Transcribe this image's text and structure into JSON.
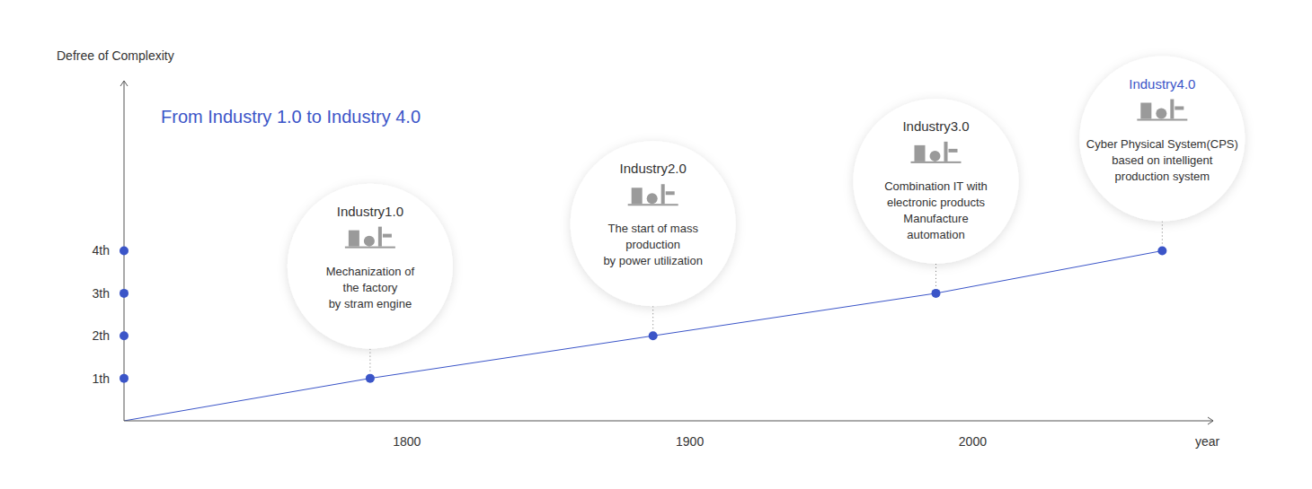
{
  "chart_data": {
    "type": "line",
    "title": "From Industry 1.0 to Industry 4.0",
    "y_label": "Defree of Complexity",
    "x_label": "year",
    "x": [
      1700,
      1787,
      1887,
      1987,
      2067
    ],
    "values": [
      0,
      1,
      2,
      3,
      4
    ],
    "color": "#3b55c8",
    "marker": "circle",
    "grid": false,
    "xlim": [
      1700,
      2085
    ],
    "xticks": [
      1800,
      1900,
      2000
    ],
    "ylim": [
      0,
      8
    ],
    "yticks": [
      {
        "value": 1,
        "label": "1th"
      },
      {
        "value": 2,
        "label": "2th"
      },
      {
        "value": 3,
        "label": "3th"
      },
      {
        "value": 4,
        "label": "4th"
      }
    ],
    "annotations": [
      null,
      {
        "title": "Industry1.0",
        "color": "#333333",
        "text": [
          "Mechanization of",
          "the factory",
          "by stram engine"
        ]
      },
      {
        "title": "Industry2.0",
        "color": "#333333",
        "text": [
          "The start of mass",
          "production",
          "by power utilization"
        ]
      },
      {
        "title": "Industry3.0",
        "color": "#333333",
        "text": [
          "Combination IT with",
          "electronic products",
          "Manufacture",
          "automation"
        ]
      },
      {
        "title": "Industry4.0",
        "color": "#3b55c8",
        "text": [
          "Cyber Physical System(CPS)",
          "based on intelligent",
          "production system"
        ]
      }
    ]
  }
}
